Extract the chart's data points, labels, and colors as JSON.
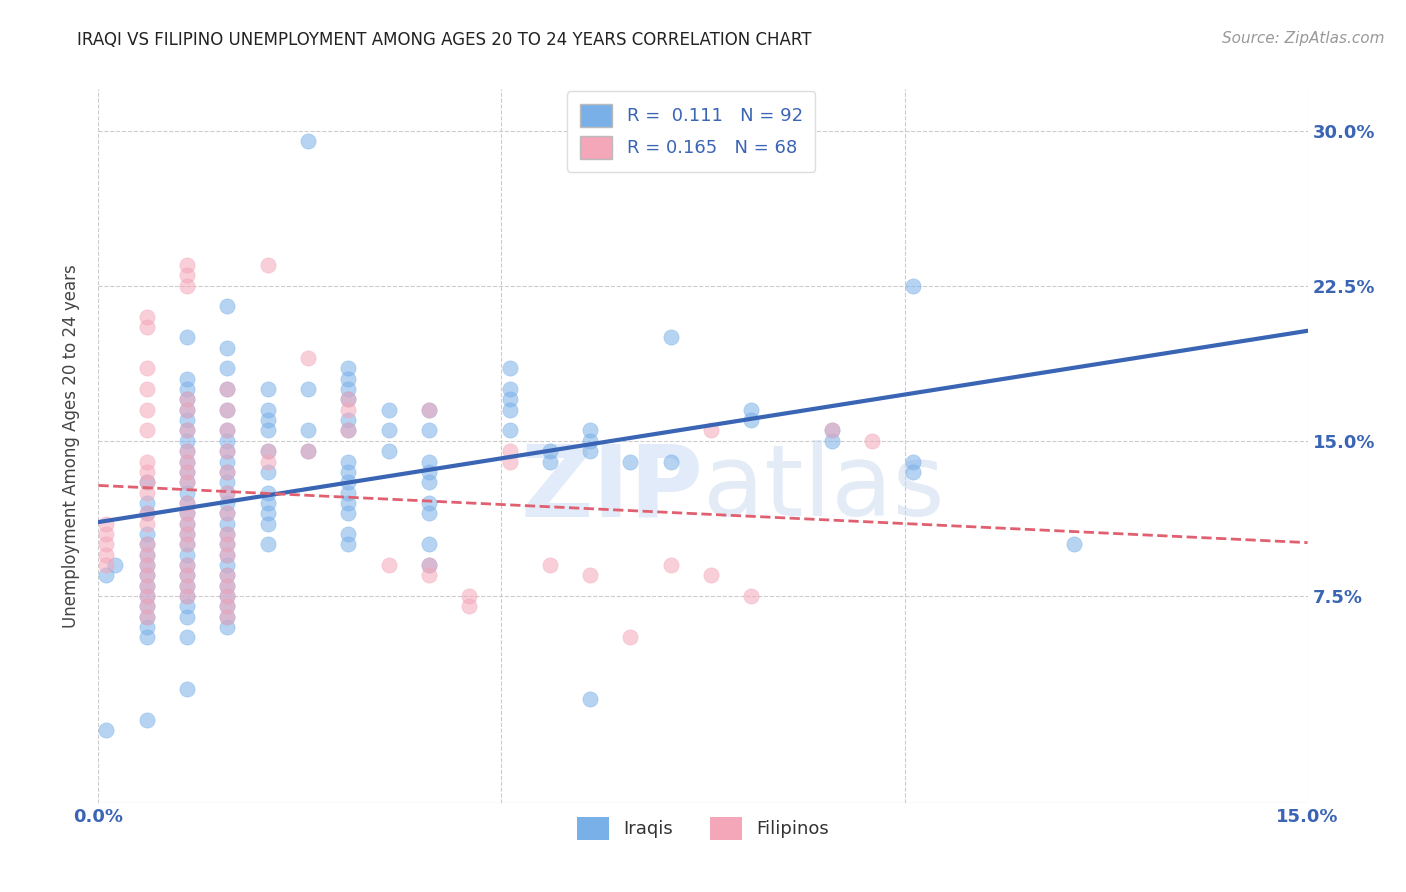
{
  "title": "IRAQI VS FILIPINO UNEMPLOYMENT AMONG AGES 20 TO 24 YEARS CORRELATION CHART",
  "source": "Source: ZipAtlas.com",
  "ylabel": "Unemployment Among Ages 20 to 24 years",
  "xlim": [
    0.0,
    0.15
  ],
  "ylim": [
    -0.025,
    0.32
  ],
  "yticks": [
    0.075,
    0.15,
    0.225,
    0.3
  ],
  "ytick_labels": [
    "7.5%",
    "15.0%",
    "22.5%",
    "30.0%"
  ],
  "xticks": [
    0.0,
    0.05,
    0.1,
    0.15
  ],
  "xtick_labels": [
    "0.0%",
    "",
    "",
    "15.0%"
  ],
  "iraqi_color": "#7ab0e8",
  "filipino_color": "#f4a7b9",
  "line_iraqi_color": "#3a65b5",
  "line_filipino_color": "#e06070",
  "iraqi_points": [
    [
      0.002,
      0.09
    ],
    [
      0.001,
      0.085
    ],
    [
      0.006,
      0.13
    ],
    [
      0.006,
      0.12
    ],
    [
      0.006,
      0.115
    ],
    [
      0.006,
      0.105
    ],
    [
      0.006,
      0.1
    ],
    [
      0.006,
      0.095
    ],
    [
      0.006,
      0.09
    ],
    [
      0.006,
      0.085
    ],
    [
      0.006,
      0.08
    ],
    [
      0.006,
      0.075
    ],
    [
      0.006,
      0.07
    ],
    [
      0.006,
      0.065
    ],
    [
      0.006,
      0.06
    ],
    [
      0.006,
      0.055
    ],
    [
      0.011,
      0.2
    ],
    [
      0.011,
      0.18
    ],
    [
      0.011,
      0.175
    ],
    [
      0.011,
      0.17
    ],
    [
      0.011,
      0.165
    ],
    [
      0.011,
      0.16
    ],
    [
      0.011,
      0.155
    ],
    [
      0.011,
      0.15
    ],
    [
      0.011,
      0.145
    ],
    [
      0.011,
      0.14
    ],
    [
      0.011,
      0.135
    ],
    [
      0.011,
      0.13
    ],
    [
      0.011,
      0.125
    ],
    [
      0.011,
      0.12
    ],
    [
      0.011,
      0.115
    ],
    [
      0.011,
      0.11
    ],
    [
      0.011,
      0.105
    ],
    [
      0.011,
      0.1
    ],
    [
      0.011,
      0.095
    ],
    [
      0.011,
      0.09
    ],
    [
      0.011,
      0.085
    ],
    [
      0.011,
      0.08
    ],
    [
      0.011,
      0.075
    ],
    [
      0.011,
      0.07
    ],
    [
      0.011,
      0.065
    ],
    [
      0.011,
      0.055
    ],
    [
      0.011,
      0.03
    ],
    [
      0.016,
      0.215
    ],
    [
      0.016,
      0.195
    ],
    [
      0.016,
      0.185
    ],
    [
      0.016,
      0.175
    ],
    [
      0.016,
      0.165
    ],
    [
      0.016,
      0.155
    ],
    [
      0.016,
      0.15
    ],
    [
      0.016,
      0.145
    ],
    [
      0.016,
      0.14
    ],
    [
      0.016,
      0.135
    ],
    [
      0.016,
      0.13
    ],
    [
      0.016,
      0.125
    ],
    [
      0.016,
      0.12
    ],
    [
      0.016,
      0.115
    ],
    [
      0.016,
      0.11
    ],
    [
      0.016,
      0.105
    ],
    [
      0.016,
      0.1
    ],
    [
      0.016,
      0.095
    ],
    [
      0.016,
      0.09
    ],
    [
      0.016,
      0.085
    ],
    [
      0.016,
      0.08
    ],
    [
      0.016,
      0.075
    ],
    [
      0.016,
      0.07
    ],
    [
      0.016,
      0.065
    ],
    [
      0.016,
      0.06
    ],
    [
      0.021,
      0.175
    ],
    [
      0.021,
      0.165
    ],
    [
      0.021,
      0.16
    ],
    [
      0.021,
      0.155
    ],
    [
      0.021,
      0.145
    ],
    [
      0.021,
      0.135
    ],
    [
      0.021,
      0.125
    ],
    [
      0.021,
      0.12
    ],
    [
      0.021,
      0.115
    ],
    [
      0.021,
      0.11
    ],
    [
      0.021,
      0.1
    ],
    [
      0.026,
      0.295
    ],
    [
      0.026,
      0.175
    ],
    [
      0.026,
      0.155
    ],
    [
      0.026,
      0.145
    ],
    [
      0.031,
      0.185
    ],
    [
      0.031,
      0.18
    ],
    [
      0.031,
      0.175
    ],
    [
      0.031,
      0.17
    ],
    [
      0.031,
      0.16
    ],
    [
      0.031,
      0.155
    ],
    [
      0.031,
      0.14
    ],
    [
      0.031,
      0.135
    ],
    [
      0.031,
      0.13
    ],
    [
      0.031,
      0.125
    ],
    [
      0.031,
      0.12
    ],
    [
      0.031,
      0.115
    ],
    [
      0.031,
      0.105
    ],
    [
      0.031,
      0.1
    ],
    [
      0.036,
      0.165
    ],
    [
      0.036,
      0.155
    ],
    [
      0.036,
      0.145
    ],
    [
      0.041,
      0.165
    ],
    [
      0.041,
      0.155
    ],
    [
      0.041,
      0.14
    ],
    [
      0.041,
      0.135
    ],
    [
      0.041,
      0.13
    ],
    [
      0.041,
      0.12
    ],
    [
      0.041,
      0.115
    ],
    [
      0.041,
      0.1
    ],
    [
      0.041,
      0.09
    ],
    [
      0.051,
      0.185
    ],
    [
      0.051,
      0.175
    ],
    [
      0.051,
      0.17
    ],
    [
      0.051,
      0.165
    ],
    [
      0.051,
      0.155
    ],
    [
      0.056,
      0.145
    ],
    [
      0.056,
      0.14
    ],
    [
      0.061,
      0.155
    ],
    [
      0.061,
      0.15
    ],
    [
      0.061,
      0.145
    ],
    [
      0.066,
      0.14
    ],
    [
      0.071,
      0.2
    ],
    [
      0.071,
      0.14
    ],
    [
      0.081,
      0.165
    ],
    [
      0.081,
      0.16
    ],
    [
      0.091,
      0.155
    ],
    [
      0.091,
      0.15
    ],
    [
      0.101,
      0.225
    ],
    [
      0.101,
      0.14
    ],
    [
      0.101,
      0.135
    ],
    [
      0.121,
      0.1
    ],
    [
      0.001,
      0.01
    ],
    [
      0.006,
      0.015
    ],
    [
      0.061,
      0.025
    ]
  ],
  "filipino_points": [
    [
      0.001,
      0.11
    ],
    [
      0.001,
      0.105
    ],
    [
      0.001,
      0.1
    ],
    [
      0.001,
      0.095
    ],
    [
      0.001,
      0.09
    ],
    [
      0.006,
      0.21
    ],
    [
      0.006,
      0.205
    ],
    [
      0.006,
      0.185
    ],
    [
      0.006,
      0.175
    ],
    [
      0.006,
      0.165
    ],
    [
      0.006,
      0.155
    ],
    [
      0.006,
      0.14
    ],
    [
      0.006,
      0.135
    ],
    [
      0.006,
      0.13
    ],
    [
      0.006,
      0.125
    ],
    [
      0.006,
      0.115
    ],
    [
      0.006,
      0.11
    ],
    [
      0.006,
      0.1
    ],
    [
      0.006,
      0.095
    ],
    [
      0.006,
      0.09
    ],
    [
      0.006,
      0.085
    ],
    [
      0.006,
      0.08
    ],
    [
      0.006,
      0.075
    ],
    [
      0.006,
      0.07
    ],
    [
      0.006,
      0.065
    ],
    [
      0.011,
      0.235
    ],
    [
      0.011,
      0.23
    ],
    [
      0.011,
      0.225
    ],
    [
      0.011,
      0.17
    ],
    [
      0.011,
      0.165
    ],
    [
      0.011,
      0.155
    ],
    [
      0.011,
      0.145
    ],
    [
      0.011,
      0.14
    ],
    [
      0.011,
      0.135
    ],
    [
      0.011,
      0.13
    ],
    [
      0.011,
      0.12
    ],
    [
      0.011,
      0.115
    ],
    [
      0.011,
      0.11
    ],
    [
      0.011,
      0.105
    ],
    [
      0.011,
      0.1
    ],
    [
      0.011,
      0.09
    ],
    [
      0.011,
      0.085
    ],
    [
      0.011,
      0.08
    ],
    [
      0.011,
      0.075
    ],
    [
      0.016,
      0.175
    ],
    [
      0.016,
      0.165
    ],
    [
      0.016,
      0.155
    ],
    [
      0.016,
      0.145
    ],
    [
      0.016,
      0.135
    ],
    [
      0.016,
      0.125
    ],
    [
      0.016,
      0.115
    ],
    [
      0.016,
      0.105
    ],
    [
      0.016,
      0.1
    ],
    [
      0.016,
      0.095
    ],
    [
      0.016,
      0.085
    ],
    [
      0.016,
      0.08
    ],
    [
      0.016,
      0.075
    ],
    [
      0.016,
      0.07
    ],
    [
      0.016,
      0.065
    ],
    [
      0.021,
      0.235
    ],
    [
      0.021,
      0.145
    ],
    [
      0.021,
      0.14
    ],
    [
      0.026,
      0.19
    ],
    [
      0.026,
      0.145
    ],
    [
      0.031,
      0.17
    ],
    [
      0.031,
      0.165
    ],
    [
      0.031,
      0.155
    ],
    [
      0.036,
      0.09
    ],
    [
      0.041,
      0.165
    ],
    [
      0.041,
      0.09
    ],
    [
      0.041,
      0.085
    ],
    [
      0.046,
      0.075
    ],
    [
      0.046,
      0.07
    ],
    [
      0.051,
      0.145
    ],
    [
      0.051,
      0.14
    ],
    [
      0.056,
      0.09
    ],
    [
      0.061,
      0.085
    ],
    [
      0.066,
      0.055
    ],
    [
      0.071,
      0.09
    ],
    [
      0.076,
      0.155
    ],
    [
      0.076,
      0.085
    ],
    [
      0.081,
      0.075
    ],
    [
      0.091,
      0.155
    ],
    [
      0.096,
      0.15
    ]
  ]
}
